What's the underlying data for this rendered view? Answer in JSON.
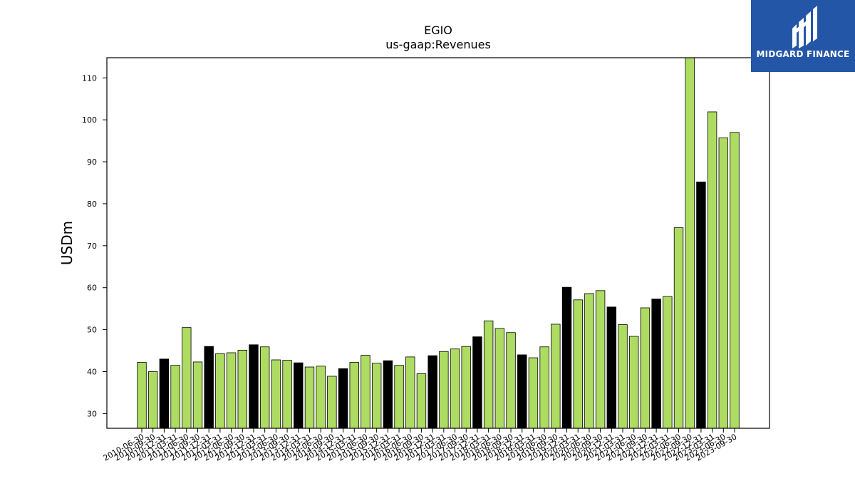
{
  "chart_data": {
    "type": "bar",
    "title": "EGIO",
    "subtitle": "us-gaap:Revenues",
    "xlabel": "",
    "ylabel": "USDm",
    "ylim": [
      26.5,
      114.8
    ],
    "yticks": [
      30,
      40,
      50,
      60,
      70,
      80,
      90,
      100,
      110
    ],
    "grid": false,
    "colors": {
      "quarterly": "#aedc63",
      "annual": "#000000",
      "edge": "#000000"
    },
    "categories": [
      "2010-06-30",
      "2010-09-30",
      "2010-12-31",
      "2011-03-31",
      "2011-06-30",
      "2011-09-30",
      "2011-12-31",
      "2012-03-31",
      "2012-06-30",
      "2012-09-30",
      "2012-12-31",
      "2013-03-31",
      "2013-06-30",
      "2013-09-30",
      "2013-12-31",
      "2014-03-31",
      "2014-06-30",
      "2014-09-30",
      "2014-12-31",
      "2015-03-31",
      "2015-06-30",
      "2015-09-30",
      "2015-12-31",
      "2016-03-31",
      "2016-06-30",
      "2016-09-30",
      "2016-12-31",
      "2017-03-31",
      "2017-06-30",
      "2017-09-30",
      "2017-12-31",
      "2018-03-31",
      "2018-06-30",
      "2018-09-30",
      "2018-12-31",
      "2019-03-31",
      "2019-06-30",
      "2019-09-30",
      "2019-12-31",
      "2020-03-31",
      "2020-06-30",
      "2020-09-30",
      "2020-12-31",
      "2021-03-31",
      "2021-06-30",
      "2021-09-30",
      "2021-12-31",
      "2022-03-31",
      "2022-06-30",
      "2022-09-30",
      "2022-12-31",
      "2023-03-31",
      "2023-06-30",
      "2023-09-30"
    ],
    "values": [
      42.2,
      40.0,
      43.0,
      41.5,
      50.5,
      42.3,
      46.0,
      44.3,
      44.5,
      45.1,
      46.4,
      45.9,
      42.8,
      42.7,
      42.1,
      41.1,
      41.3,
      38.9,
      40.7,
      42.2,
      43.9,
      42.0,
      42.6,
      41.5,
      43.5,
      39.5,
      43.8,
      44.8,
      45.4,
      46.0,
      48.3,
      52.1,
      50.3,
      49.3,
      44.0,
      43.3,
      45.9,
      51.3,
      60.1,
      57.1,
      58.6,
      59.3,
      55.4,
      51.2,
      48.4,
      55.2,
      57.3,
      57.9,
      74.3,
      114.8,
      85.2,
      101.9,
      95.7,
      97.0
    ],
    "annual": [
      false,
      false,
      true,
      false,
      false,
      false,
      true,
      false,
      false,
      false,
      true,
      false,
      false,
      false,
      true,
      false,
      false,
      false,
      true,
      false,
      false,
      false,
      true,
      false,
      false,
      false,
      true,
      false,
      false,
      false,
      true,
      false,
      false,
      false,
      true,
      false,
      false,
      false,
      true,
      false,
      false,
      false,
      true,
      false,
      false,
      false,
      true,
      false,
      false,
      false,
      true,
      false,
      false,
      false
    ]
  },
  "logo": {
    "text": "MIDGARD FINANCE"
  }
}
